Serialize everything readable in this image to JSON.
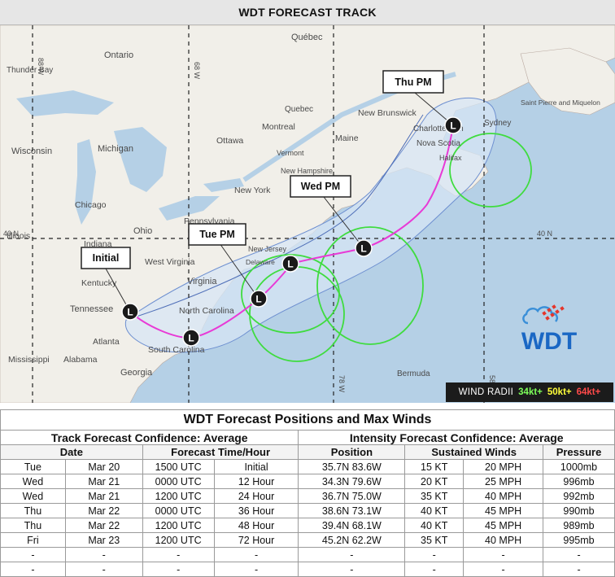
{
  "header": {
    "title": "WDT FORECAST TRACK"
  },
  "map": {
    "place_labels": [
      "Ontario",
      "Québec",
      "Thunder Bay",
      "Quebec",
      "Montreal",
      "Ottawa",
      "New Brunswick",
      "Charlottetown",
      "Sydney",
      "Saint Pierre and Miquelon",
      "Maine",
      "Nova Scotia",
      "Halifax",
      "Vermont",
      "New Hampshire",
      "New York",
      "Michigan",
      "Wisconsin",
      "Chicago",
      "Pennsylvania",
      "Ohio",
      "New Jersey",
      "Illinois",
      "Indiana",
      "West Virginia",
      "Delaware",
      "Kentucky",
      "Virginia",
      "Tennessee",
      "North Carolina",
      "South Carolina",
      "Atlanta",
      "Mississippi",
      "Alabama",
      "Georgia",
      "Bermuda"
    ],
    "gridline_labels": [
      "40 N",
      "40 N",
      "88 W",
      "68 W",
      "78 W",
      "58 W"
    ],
    "forecast_points": [
      "Initial",
      "Tue PM",
      "Wed PM",
      "Thu PM"
    ],
    "center_marker_letter": "L"
  },
  "legend": {
    "title": "WIND RADII",
    "items": [
      {
        "label": "34kt+",
        "color": "#7dff5a"
      },
      {
        "label": "50kt+",
        "color": "#ffff3a"
      },
      {
        "label": "64kt+",
        "color": "#ff4a4a"
      }
    ]
  },
  "logo": {
    "text": "WDT"
  },
  "colors": {
    "track": "#e83ad6",
    "wind_radii_34kt": "#3fdc3f",
    "cone_fill": "#cfe1f2",
    "water": "#b5d0e6",
    "land": "#f1efe9"
  },
  "table": {
    "title": "WDT Forecast Positions and Max Winds",
    "track_confidence": "Track Forecast Confidence: Average",
    "intensity_confidence": "Intensity Forecast Confidence: Average",
    "columns": [
      "Date",
      "Forecast Time/Hour",
      "Position",
      "Sustained Winds",
      "Pressure"
    ],
    "rows": [
      [
        "Tue",
        "Mar 20",
        "1500 UTC",
        "Initial",
        "35.7N 83.6W",
        "15 KT",
        "20 MPH",
        "1000mb"
      ],
      [
        "Wed",
        "Mar 21",
        "0000 UTC",
        "12 Hour",
        "34.3N 79.6W",
        "20 KT",
        "25 MPH",
        "996mb"
      ],
      [
        "Wed",
        "Mar 21",
        "1200 UTC",
        "24 Hour",
        "36.7N 75.0W",
        "35 KT",
        "40 MPH",
        "992mb"
      ],
      [
        "Thu",
        "Mar 22",
        "0000 UTC",
        "36 Hour",
        "38.6N 73.1W",
        "40 KT",
        "45 MPH",
        "990mb"
      ],
      [
        "Thu",
        "Mar 22",
        "1200 UTC",
        "48 Hour",
        "39.4N 68.1W",
        "40 KT",
        "45 MPH",
        "989mb"
      ],
      [
        "Fri",
        "Mar 23",
        "1200 UTC",
        "72 Hour",
        "45.2N 62.2W",
        "35 KT",
        "40 MPH",
        "995mb"
      ],
      [
        "-",
        "-",
        "-",
        "-",
        "-",
        "-",
        "-",
        "-"
      ],
      [
        "-",
        "-",
        "-",
        "-",
        "-",
        "-",
        "-",
        "-"
      ]
    ]
  }
}
